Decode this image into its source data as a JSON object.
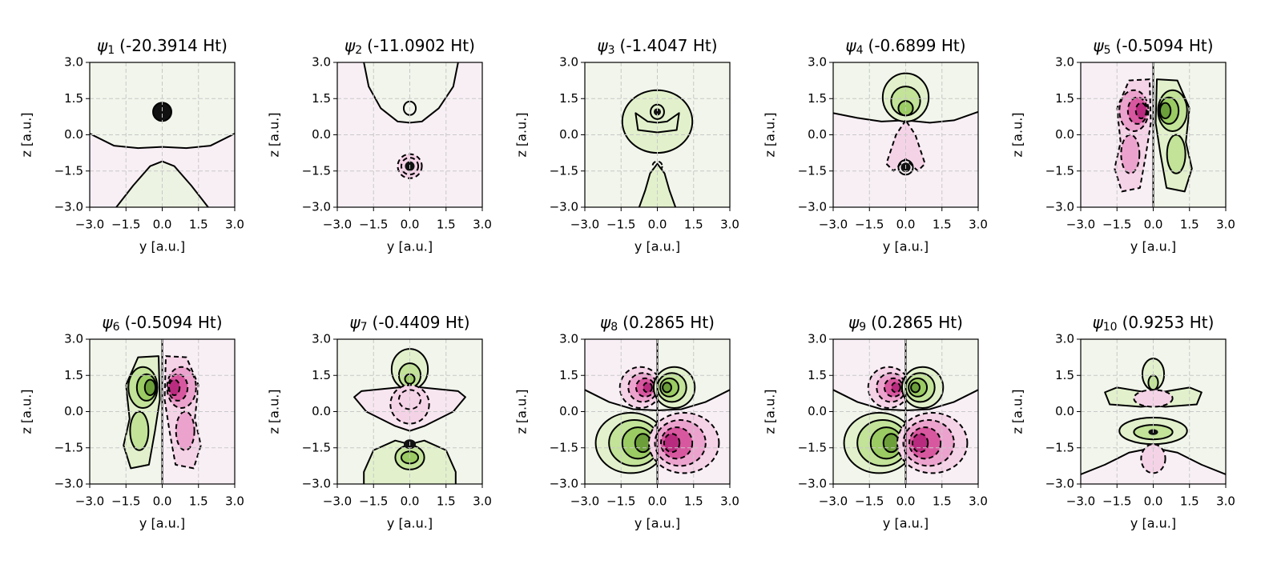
{
  "chart_data": [
    {
      "type": "contour",
      "symbol": "ψ",
      "subscript": "1",
      "title": "(-20.3914 Ht)",
      "xlabel": "y [a.u.]",
      "ylabel": "z [a.u.]",
      "xlim": [
        -3,
        3
      ],
      "ylim": [
        -3,
        3
      ],
      "grid": true,
      "xticks": [
        {
          "value": -3,
          "label": "−3.0"
        },
        {
          "value": -1.5,
          "label": "−1.5"
        },
        {
          "value": 0,
          "label": "0.0"
        },
        {
          "value": 1.5,
          "label": "1.5"
        },
        {
          "value": 3,
          "label": "3.0"
        }
      ],
      "yticks": [
        {
          "value": -3,
          "label": "−3.0"
        },
        {
          "value": -1.5,
          "label": "−1.5"
        },
        {
          "value": 0,
          "label": "0.0"
        },
        {
          "value": 1.5,
          "label": "1.5"
        },
        {
          "value": 3,
          "label": "3.0"
        }
      ]
    },
    {
      "type": "contour",
      "symbol": "ψ",
      "subscript": "2",
      "title": "(-11.0902 Ht)",
      "xlabel": "y [a.u.]",
      "ylabel": "z [a.u.]",
      "xlim": [
        -3,
        3
      ],
      "ylim": [
        -3,
        3
      ],
      "grid": true,
      "xticks": [
        {
          "value": -3,
          "label": "−3.0"
        },
        {
          "value": -1.5,
          "label": "−1.5"
        },
        {
          "value": 0,
          "label": "0.0"
        },
        {
          "value": 1.5,
          "label": "1.5"
        },
        {
          "value": 3,
          "label": "3.0"
        }
      ],
      "yticks": [
        {
          "value": -3,
          "label": "−3.0"
        },
        {
          "value": -1.5,
          "label": "−1.5"
        },
        {
          "value": 0,
          "label": "0.0"
        },
        {
          "value": 1.5,
          "label": "1.5"
        },
        {
          "value": 3,
          "label": "3.0"
        }
      ]
    },
    {
      "type": "contour",
      "symbol": "ψ",
      "subscript": "3",
      "title": "(-1.4047 Ht)",
      "xlabel": "y [a.u.]",
      "ylabel": "z [a.u.]",
      "xlim": [
        -3,
        3
      ],
      "ylim": [
        -3,
        3
      ],
      "grid": true,
      "xticks": [
        {
          "value": -3,
          "label": "−3.0"
        },
        {
          "value": -1.5,
          "label": "−1.5"
        },
        {
          "value": 0,
          "label": "0.0"
        },
        {
          "value": 1.5,
          "label": "1.5"
        },
        {
          "value": 3,
          "label": "3.0"
        }
      ],
      "yticks": [
        {
          "value": -3,
          "label": "−3.0"
        },
        {
          "value": -1.5,
          "label": "−1.5"
        },
        {
          "value": 0,
          "label": "0.0"
        },
        {
          "value": 1.5,
          "label": "1.5"
        },
        {
          "value": 3,
          "label": "3.0"
        }
      ]
    },
    {
      "type": "contour",
      "symbol": "ψ",
      "subscript": "4",
      "title": "(-0.6899 Ht)",
      "xlabel": "y [a.u.]",
      "ylabel": "z [a.u.]",
      "xlim": [
        -3,
        3
      ],
      "ylim": [
        -3,
        3
      ],
      "grid": true,
      "xticks": [
        {
          "value": -3,
          "label": "−3.0"
        },
        {
          "value": -1.5,
          "label": "−1.5"
        },
        {
          "value": 0,
          "label": "0.0"
        },
        {
          "value": 1.5,
          "label": "1.5"
        },
        {
          "value": 3,
          "label": "3.0"
        }
      ],
      "yticks": [
        {
          "value": -3,
          "label": "−3.0"
        },
        {
          "value": -1.5,
          "label": "−1.5"
        },
        {
          "value": 0,
          "label": "0.0"
        },
        {
          "value": 1.5,
          "label": "1.5"
        },
        {
          "value": 3,
          "label": "3.0"
        }
      ]
    },
    {
      "type": "contour",
      "symbol": "ψ",
      "subscript": "5",
      "title": "(-0.5094 Ht)",
      "xlabel": "y [a.u.]",
      "ylabel": "z [a.u.]",
      "xlim": [
        -3,
        3
      ],
      "ylim": [
        -3,
        3
      ],
      "grid": true,
      "xticks": [
        {
          "value": -3,
          "label": "−3.0"
        },
        {
          "value": -1.5,
          "label": "−1.5"
        },
        {
          "value": 0,
          "label": "0.0"
        },
        {
          "value": 1.5,
          "label": "1.5"
        },
        {
          "value": 3,
          "label": "3.0"
        }
      ],
      "yticks": [
        {
          "value": -3,
          "label": "−3.0"
        },
        {
          "value": -1.5,
          "label": "−1.5"
        },
        {
          "value": 0,
          "label": "0.0"
        },
        {
          "value": 1.5,
          "label": "1.5"
        },
        {
          "value": 3,
          "label": "3.0"
        }
      ]
    },
    {
      "type": "contour",
      "symbol": "ψ",
      "subscript": "6",
      "title": "(-0.5094 Ht)",
      "xlabel": "y [a.u.]",
      "ylabel": "z [a.u.]",
      "xlim": [
        -3,
        3
      ],
      "ylim": [
        -3,
        3
      ],
      "grid": true,
      "xticks": [
        {
          "value": -3,
          "label": "−3.0"
        },
        {
          "value": -1.5,
          "label": "−1.5"
        },
        {
          "value": 0,
          "label": "0.0"
        },
        {
          "value": 1.5,
          "label": "1.5"
        },
        {
          "value": 3,
          "label": "3.0"
        }
      ],
      "yticks": [
        {
          "value": -3,
          "label": "−3.0"
        },
        {
          "value": -1.5,
          "label": "−1.5"
        },
        {
          "value": 0,
          "label": "0.0"
        },
        {
          "value": 1.5,
          "label": "1.5"
        },
        {
          "value": 3,
          "label": "3.0"
        }
      ]
    },
    {
      "type": "contour",
      "symbol": "ψ",
      "subscript": "7",
      "title": "(-0.4409 Ht)",
      "xlabel": "y [a.u.]",
      "ylabel": "z [a.u.]",
      "xlim": [
        -3,
        3
      ],
      "ylim": [
        -3,
        3
      ],
      "grid": true,
      "xticks": [
        {
          "value": -3,
          "label": "−3.0"
        },
        {
          "value": -1.5,
          "label": "−1.5"
        },
        {
          "value": 0,
          "label": "0.0"
        },
        {
          "value": 1.5,
          "label": "1.5"
        },
        {
          "value": 3,
          "label": "3.0"
        }
      ],
      "yticks": [
        {
          "value": -3,
          "label": "−3.0"
        },
        {
          "value": -1.5,
          "label": "−1.5"
        },
        {
          "value": 0,
          "label": "0.0"
        },
        {
          "value": 1.5,
          "label": "1.5"
        },
        {
          "value": 3,
          "label": "3.0"
        }
      ]
    },
    {
      "type": "contour",
      "symbol": "ψ",
      "subscript": "8",
      "title": "(0.2865 Ht)",
      "xlabel": "y [a.u.]",
      "ylabel": "z [a.u.]",
      "xlim": [
        -3,
        3
      ],
      "ylim": [
        -3,
        3
      ],
      "grid": true,
      "xticks": [
        {
          "value": -3,
          "label": "−3.0"
        },
        {
          "value": -1.5,
          "label": "−1.5"
        },
        {
          "value": 0,
          "label": "0.0"
        },
        {
          "value": 1.5,
          "label": "1.5"
        },
        {
          "value": 3,
          "label": "3.0"
        }
      ],
      "yticks": [
        {
          "value": -3,
          "label": "−3.0"
        },
        {
          "value": -1.5,
          "label": "−1.5"
        },
        {
          "value": 0,
          "label": "0.0"
        },
        {
          "value": 1.5,
          "label": "1.5"
        },
        {
          "value": 3,
          "label": "3.0"
        }
      ]
    },
    {
      "type": "contour",
      "symbol": "ψ",
      "subscript": "9",
      "title": "(0.2865 Ht)",
      "xlabel": "y [a.u.]",
      "ylabel": "z [a.u.]",
      "xlim": [
        -3,
        3
      ],
      "ylim": [
        -3,
        3
      ],
      "grid": true,
      "xticks": [
        {
          "value": -3,
          "label": "−3.0"
        },
        {
          "value": -1.5,
          "label": "−1.5"
        },
        {
          "value": 0,
          "label": "0.0"
        },
        {
          "value": 1.5,
          "label": "1.5"
        },
        {
          "value": 3,
          "label": "3.0"
        }
      ],
      "yticks": [
        {
          "value": -3,
          "label": "−3.0"
        },
        {
          "value": -1.5,
          "label": "−1.5"
        },
        {
          "value": 0,
          "label": "0.0"
        },
        {
          "value": 1.5,
          "label": "1.5"
        },
        {
          "value": 3,
          "label": "3.0"
        }
      ]
    },
    {
      "type": "contour",
      "symbol": "ψ",
      "subscript": "10",
      "title": "(0.9253 Ht)",
      "xlabel": "y [a.u.]",
      "ylabel": "z [a.u.]",
      "xlim": [
        -3,
        3
      ],
      "ylim": [
        -3,
        3
      ],
      "grid": true,
      "xticks": [
        {
          "value": -3,
          "label": "−3.0"
        },
        {
          "value": -1.5,
          "label": "−1.5"
        },
        {
          "value": 0,
          "label": "0.0"
        },
        {
          "value": 1.5,
          "label": "1.5"
        },
        {
          "value": 3,
          "label": "3.0"
        }
      ],
      "yticks": [
        {
          "value": -3,
          "label": "−3.0"
        },
        {
          "value": -1.5,
          "label": "−1.5"
        },
        {
          "value": 0,
          "label": "0.0"
        },
        {
          "value": 1.5,
          "label": "1.5"
        },
        {
          "value": 3,
          "label": "3.0"
        }
      ]
    }
  ]
}
